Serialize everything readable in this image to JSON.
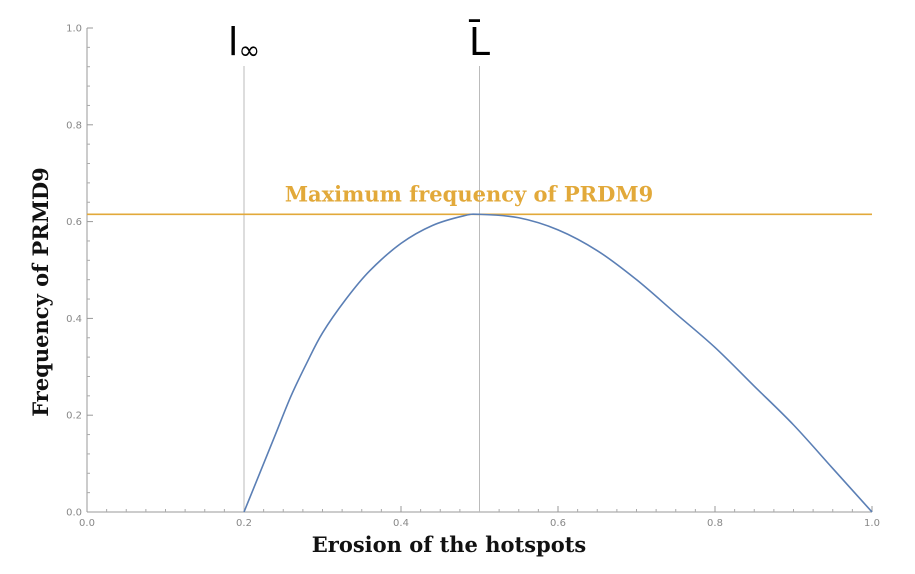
{
  "chart_data": {
    "type": "line",
    "xlabel": "Erosion of the hotspots",
    "ylabel": "Frequency of PRMD9",
    "xlim": [
      0,
      1
    ],
    "ylim": [
      0,
      1
    ],
    "x_ticks": [
      "0.0",
      "0.2",
      "0.4",
      "0.6",
      "0.8",
      "1.0"
    ],
    "y_ticks": [
      "0.0",
      "0.2",
      "0.4",
      "0.6",
      "0.8",
      "1.0"
    ],
    "grid": false,
    "series": [
      {
        "color": "#5b7fb5",
        "x": [
          0.2,
          0.21,
          0.22,
          0.24,
          0.26,
          0.28,
          0.3,
          0.33,
          0.36,
          0.4,
          0.44,
          0.48,
          0.5,
          0.55,
          0.6,
          0.65,
          0.7,
          0.75,
          0.8,
          0.85,
          0.9,
          0.95,
          1.0
        ],
        "y": [
          0.0,
          0.04,
          0.08,
          0.16,
          0.24,
          0.308,
          0.37,
          0.44,
          0.498,
          0.555,
          0.592,
          0.612,
          0.615,
          0.608,
          0.583,
          0.54,
          0.48,
          0.41,
          0.34,
          0.26,
          0.18,
          0.09,
          0.0
        ]
      }
    ],
    "reference_lines": {
      "horizontal": {
        "y": 0.615,
        "label": "Maximum frequency of PRDM9",
        "color": "#e2a93a"
      },
      "vertical": [
        {
          "x": 0.2,
          "label": "l",
          "subscript": "∞",
          "color": "#bbbbbb"
        },
        {
          "x": 0.5,
          "label": "L̄",
          "color": "#bbbbbb"
        }
      ]
    }
  }
}
